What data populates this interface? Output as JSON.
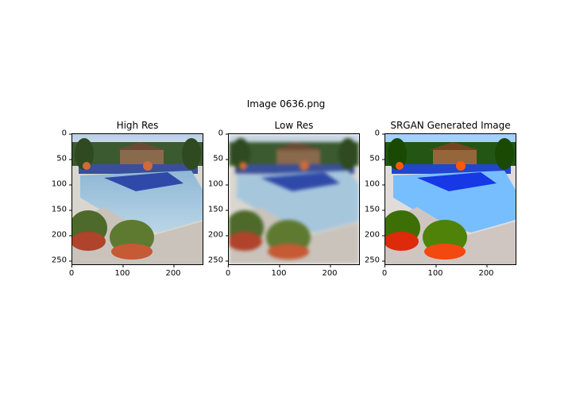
{
  "figure": {
    "suptitle": "Image 0636.png"
  },
  "chart_data": {
    "type": "image-grid",
    "title": "Image 0636.png",
    "panels": [
      {
        "title": "High Res"
      },
      {
        "title": "Low Res"
      },
      {
        "title": "SRGAN Generated Image"
      }
    ],
    "xticks": [
      "0",
      "100",
      "200"
    ],
    "xtick_values": [
      0,
      100,
      200
    ],
    "yticks": [
      "0",
      "50",
      "100",
      "150",
      "200",
      "250"
    ],
    "ytick_values": [
      0,
      50,
      100,
      150,
      200,
      250
    ],
    "xlim": [
      0,
      256
    ],
    "ylim": [
      256,
      0
    ]
  }
}
